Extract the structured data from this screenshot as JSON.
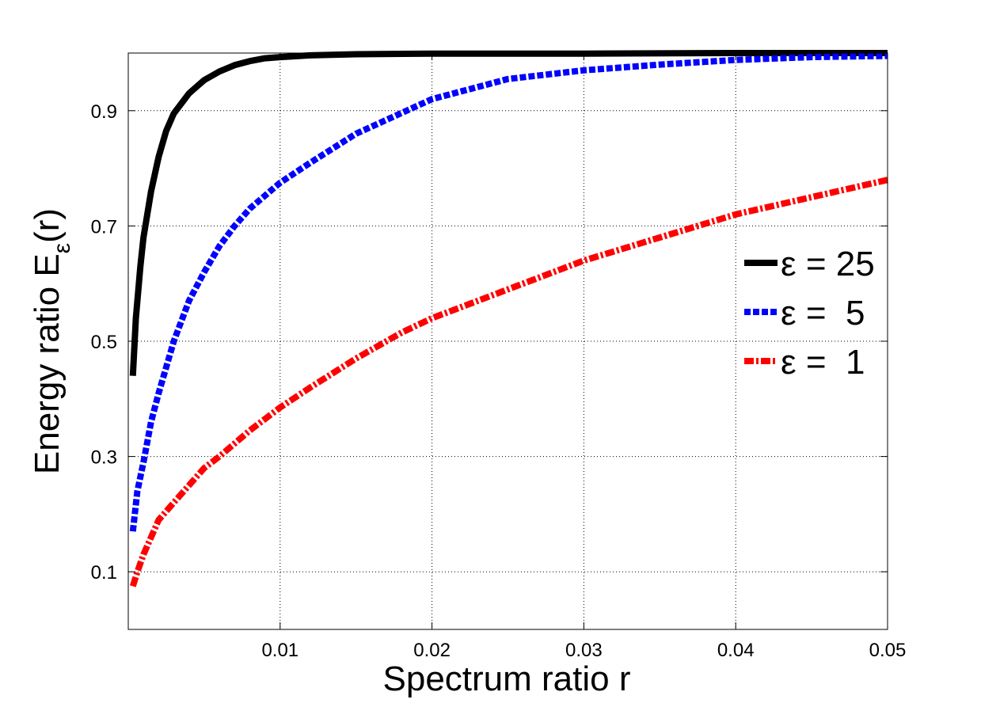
{
  "chart_data": {
    "type": "line",
    "title": "",
    "xlabel": "Spectrum ratio r",
    "ylabel_main": "Energy ratio E",
    "ylabel_sub": "ε",
    "ylabel_tail": "(r)",
    "xlim": [
      0.0,
      0.05
    ],
    "ylim": [
      0.0,
      1.0
    ],
    "xticks": [
      0.01,
      0.02,
      0.03,
      0.04,
      0.05
    ],
    "xtick_labels": [
      "0.01",
      "0.02",
      "0.03",
      "0.04",
      "0.05"
    ],
    "yticks": [
      0.1,
      0.3,
      0.5,
      0.7,
      0.9
    ],
    "ytick_labels": [
      "0.1",
      "0.3",
      "0.5",
      "0.7",
      "0.9"
    ],
    "grid": true,
    "legend_position": "right",
    "series": [
      {
        "name": "ε = 25",
        "color": "#000000",
        "style": "solid",
        "x": [
          0.0003,
          0.0005,
          0.0008,
          0.001,
          0.0015,
          0.002,
          0.0025,
          0.003,
          0.004,
          0.005,
          0.006,
          0.007,
          0.008,
          0.009,
          0.01,
          0.012,
          0.015,
          0.02,
          0.03,
          0.04,
          0.05
        ],
        "y": [
          0.44,
          0.54,
          0.63,
          0.68,
          0.76,
          0.82,
          0.865,
          0.895,
          0.93,
          0.953,
          0.968,
          0.979,
          0.986,
          0.991,
          0.993,
          0.996,
          0.998,
          0.999,
          0.999,
          1.0,
          1.0
        ]
      },
      {
        "name": "ε =  5",
        "color": "#0000ff",
        "style": "dashed",
        "x": [
          0.0003,
          0.0006,
          0.001,
          0.0015,
          0.002,
          0.003,
          0.004,
          0.005,
          0.006,
          0.007,
          0.008,
          0.01,
          0.012,
          0.015,
          0.02,
          0.025,
          0.03,
          0.035,
          0.04,
          0.045,
          0.05
        ],
        "y": [
          0.17,
          0.24,
          0.29,
          0.36,
          0.41,
          0.5,
          0.57,
          0.62,
          0.665,
          0.7,
          0.73,
          0.775,
          0.81,
          0.86,
          0.92,
          0.955,
          0.97,
          0.98,
          0.988,
          0.993,
          0.995
        ]
      },
      {
        "name": "ε =  1",
        "color": "#ff0000",
        "style": "dashdot",
        "x": [
          0.0003,
          0.0006,
          0.001,
          0.002,
          0.003,
          0.004,
          0.005,
          0.006,
          0.008,
          0.01,
          0.012,
          0.015,
          0.018,
          0.02,
          0.025,
          0.03,
          0.035,
          0.04,
          0.045,
          0.05
        ],
        "y": [
          0.075,
          0.1,
          0.13,
          0.19,
          0.22,
          0.25,
          0.28,
          0.3,
          0.345,
          0.385,
          0.42,
          0.47,
          0.515,
          0.54,
          0.59,
          0.64,
          0.68,
          0.72,
          0.75,
          0.78
        ]
      }
    ]
  }
}
